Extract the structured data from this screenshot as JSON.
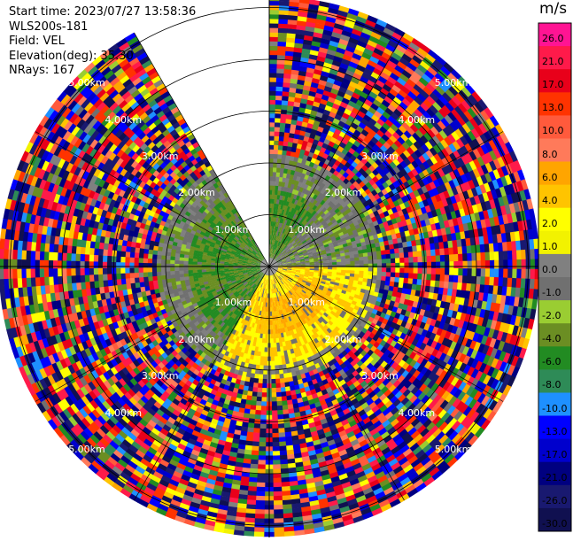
{
  "header": {
    "start_time": "Start time: 2023/07/27 13:58:36",
    "instrument": "WLS200s-181",
    "field": "Field: VEL",
    "elevation": "Elevation(deg): 35.30",
    "nrays": "NRays: 167"
  },
  "colorbar": {
    "title": "m/s",
    "ticks": [
      "26.0",
      "21.0",
      "17.0",
      "13.0",
      "10.0",
      "8.0",
      "6.0",
      "4.0",
      "2.0",
      "1.0",
      "0.0",
      "-1.0",
      "-2.0",
      "-4.0",
      "-6.0",
      "-8.0",
      "-10.0",
      "-13.0",
      "-17.0",
      "-21.0",
      "-26.0",
      "-30.0"
    ],
    "colors": [
      "#ff1493",
      "#ff1a4a",
      "#e8001a",
      "#ff3300",
      "#ff5a3c",
      "#ff7a5a",
      "#ffa500",
      "#ffc400",
      "#ffff00",
      "#f2f200",
      "#808080",
      "#707070",
      "#9acd32",
      "#6b8e23",
      "#228b22",
      "#2e8b57",
      "#1e90ff",
      "#0000ff",
      "#0000cd",
      "#000080",
      "#191970",
      "#101050"
    ]
  },
  "chart_data": {
    "type": "heatmap",
    "projection": "polar-ppi",
    "field": "VEL",
    "units": "m/s",
    "range_rings_km": [
      1.0,
      2.0,
      3.0,
      4.0,
      5.0
    ],
    "ring_labels": [
      "1.00km",
      "2.00km",
      "3.00km",
      "4.00km",
      "5.00km"
    ],
    "max_range_km": 5.2,
    "missing_sector_deg": [
      330,
      360
    ],
    "value_range": [
      -30.0,
      26.0
    ],
    "regions": [
      {
        "description": "near-field negative velocities to the west",
        "azimuth_deg": [
          210,
          330
        ],
        "range_km": [
          0.2,
          1.6
        ],
        "value_ms": -4.0
      },
      {
        "description": "near-field negative velocities to the north-north-east",
        "azimuth_deg": [
          0,
          40
        ],
        "range_km": [
          0.2,
          1.5
        ],
        "value_ms": -4.0
      },
      {
        "description": "near-field positive velocities to the south-east",
        "azimuth_deg": [
          90,
          210
        ],
        "range_km": [
          0.2,
          1.9
        ],
        "value_ms": 4.0
      },
      {
        "description": "near-field peak positive core",
        "azimuth_deg": [
          110,
          190
        ],
        "range_km": [
          0.6,
          1.3
        ],
        "value_ms": 6.0
      }
    ]
  }
}
